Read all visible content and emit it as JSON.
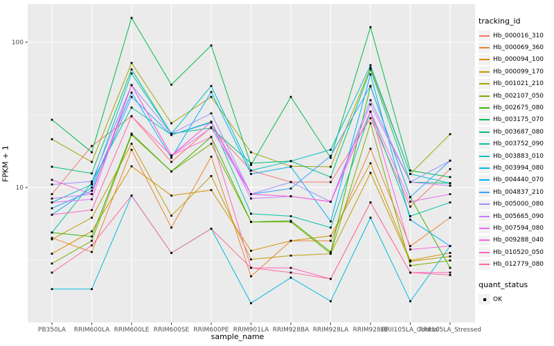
{
  "axes": {
    "x_title": "sample_name",
    "y_title": "FPKM + 1"
  },
  "legend": {
    "tracking_title": "tracking_id",
    "quant_title": "quant_status",
    "quant_items": [
      {
        "label": "OK",
        "shape": "black-square"
      }
    ]
  },
  "chart_data": {
    "type": "line",
    "title": "",
    "xlabel": "sample_name",
    "ylabel": "FPKM + 1",
    "y_scale": "log10",
    "ylim": [
      1.18,
      183
    ],
    "grid": true,
    "legend_position": "right",
    "panel_bg": "#EBEBEB",
    "gridline_color": "#FFFFFF",
    "point_color": "#000000",
    "point_shape": "square",
    "y_ticks": [
      {
        "label": "100",
        "value": 100
      },
      {
        "label": "10",
        "value": 10
      }
    ],
    "y_major_gridlines": [
      100,
      10
    ],
    "y_minor_gridlines": [
      31.62,
      3.162
    ],
    "categories": [
      "PB350LA",
      "RRIM600LA",
      "RRIM600LE",
      "RRIM600SE",
      "RRIM600PE",
      "RRIM901LA",
      "RRIM928BA",
      "RRIM928LA",
      "RRIM928LE",
      "RRII105LA_Control",
      "RRII105LA_Stressed"
    ],
    "series": [
      {
        "name": "Hb_000016_310",
        "color": "#F8766D",
        "values": [
          9.0,
          19.3,
          31,
          15,
          26,
          13.1,
          10.9,
          10.9,
          30,
          7.4,
          13.4
        ]
      },
      {
        "name": "Hb_000069_360",
        "color": "#EA8331",
        "values": [
          4.5,
          3.6,
          18.2,
          5.3,
          16.3,
          2.45,
          4.3,
          4.3,
          18.5,
          3.95,
          6.2
        ]
      },
      {
        "name": "Hb_000094_100",
        "color": "#D89000",
        "values": [
          3.5,
          5.0,
          14,
          8.8,
          9.6,
          3.67,
          4.3,
          4.65,
          14.7,
          3.15,
          3.55
        ]
      },
      {
        "name": "Hb_000099_170",
        "color": "#C09B00",
        "values": [
          4.4,
          6.2,
          20,
          6.4,
          12,
          3.2,
          3.4,
          3.5,
          12.6,
          3.1,
          3.36
        ]
      },
      {
        "name": "Hb_001021_210",
        "color": "#A3A500",
        "values": [
          21.5,
          15.0,
          72,
          27.7,
          42,
          17.5,
          14.0,
          13.9,
          66.7,
          12.4,
          23.3
        ]
      },
      {
        "name": "Hb_002107_050",
        "color": "#7CAE00",
        "values": [
          3.0,
          4.3,
          23,
          12.9,
          20,
          5.8,
          5.8,
          3.5,
          27.7,
          2.9,
          3.15
        ]
      },
      {
        "name": "Hb_002675_080",
        "color": "#39B600",
        "values": [
          4.9,
          4.6,
          23.5,
          12.9,
          22.3,
          5.8,
          5.9,
          3.6,
          49.6,
          8.6,
          2.8
        ]
      },
      {
        "name": "Hb_003175_070",
        "color": "#00BB4E",
        "values": [
          29.3,
          17.5,
          147,
          51,
          95,
          14.3,
          42,
          16,
          127,
          13.1,
          11.8
        ]
      },
      {
        "name": "Hb_003687_080",
        "color": "#00BF7D",
        "values": [
          13.9,
          12.5,
          65,
          23.5,
          25.7,
          14.7,
          15.2,
          11.8,
          65,
          10.9,
          10.7
        ]
      },
      {
        "name": "Hb_003752_090",
        "color": "#00C1A3",
        "values": [
          4.9,
          10.8,
          35.5,
          23,
          28.3,
          6.6,
          6.35,
          5.3,
          33.3,
          6.35,
          7.9
        ]
      },
      {
        "name": "Hb_003883_010",
        "color": "#00BFC4",
        "values": [
          7.9,
          10.5,
          61,
          23.5,
          50,
          13.1,
          15.2,
          18.2,
          69.5,
          12.4,
          10.7
        ]
      },
      {
        "name": "Hb_003994_080",
        "color": "#00BAE0",
        "values": [
          2.0,
          2.0,
          8.8,
          3.55,
          5.2,
          1.6,
          2.4,
          1.65,
          6.2,
          1.65,
          3.96
        ]
      },
      {
        "name": "Hb_004440_070",
        "color": "#00B0F6",
        "values": [
          6.5,
          10.0,
          45,
          16,
          45.4,
          12.4,
          13.9,
          5.85,
          60,
          6.0,
          3.96
        ]
      },
      {
        "name": "Hb_004837_210",
        "color": "#35A2FF",
        "values": [
          7.2,
          9.5,
          42,
          23,
          28,
          9.0,
          9.85,
          16.5,
          50,
          8.6,
          15.3
        ]
      },
      {
        "name": "Hb_005000_080",
        "color": "#9590FF",
        "values": [
          10.5,
          11.0,
          50.7,
          23.5,
          32.4,
          9.0,
          10.9,
          8.0,
          39.9,
          10.9,
          15.3
        ]
      },
      {
        "name": "Hb_005665_090",
        "color": "#C77CFF",
        "values": [
          8.4,
          9.0,
          50.7,
          16.6,
          28.3,
          8.4,
          8.7,
          8.0,
          37.3,
          10.9,
          10.3
        ]
      },
      {
        "name": "Hb_007594_080",
        "color": "#E76BF3",
        "values": [
          7.9,
          8.3,
          50.7,
          16.6,
          25.7,
          9.0,
          8.7,
          8.0,
          33.3,
          8.0,
          9.0
        ]
      },
      {
        "name": "Hb_009288_040",
        "color": "#FA62DB",
        "values": [
          11.3,
          9.0,
          50.7,
          16.6,
          28.3,
          9.0,
          8.7,
          8.0,
          33.3,
          3.75,
          3.96
        ]
      },
      {
        "name": "Hb_010520_050",
        "color": "#FF62BC",
        "values": [
          6.5,
          7.0,
          30.9,
          16.6,
          22.3,
          2.8,
          2.8,
          2.35,
          7.9,
          2.6,
          2.6
        ]
      },
      {
        "name": "Hb_012779_080",
        "color": "#FF6A98",
        "values": [
          2.6,
          4.0,
          8.8,
          3.55,
          5.2,
          2.8,
          2.6,
          2.35,
          7.9,
          2.6,
          2.5
        ]
      }
    ]
  }
}
